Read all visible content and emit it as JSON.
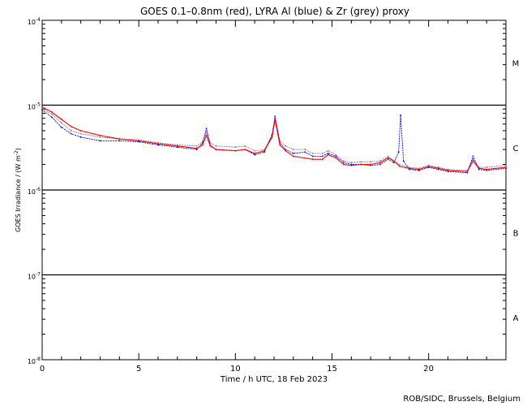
{
  "chart_data": {
    "type": "line",
    "title": "GOES 0.1–0.8nm (red), LYRA Al (blue) & Zr (grey) proxy",
    "xlabel": "Time / h UTC, 18 Feb 2023",
    "ylabel": "GOES Irradiance / (W m",
    "ylabel_exp": "-2",
    "ylabel_end": ")",
    "xlim": [
      0,
      24
    ],
    "ylim": [
      1e-08,
      0.0001
    ],
    "yscale": "log",
    "x_ticks": [
      0,
      5,
      10,
      15,
      20
    ],
    "y_ticks": [
      {
        "base": "10",
        "exp": "-8"
      },
      {
        "base": "10",
        "exp": "-7"
      },
      {
        "base": "10",
        "exp": "-6"
      },
      {
        "base": "10",
        "exp": "-5"
      },
      {
        "base": "10",
        "exp": "-4"
      }
    ],
    "class_levels": [
      {
        "label": "A",
        "level": 3.16e-08
      },
      {
        "label": "B",
        "level": 3.16e-07
      },
      {
        "label": "C",
        "level": 3.16e-06
      },
      {
        "label": "M",
        "level": 3.16e-05
      }
    ],
    "gridlines": [
      1e-05,
      1e-06,
      1e-07
    ],
    "credit": "ROB/SIDC, Brussels, Belgium",
    "series": [
      {
        "name": "GOES 0.1–0.8nm",
        "color": "#ff0000",
        "x": [
          0,
          0.5,
          1,
          1.5,
          2,
          3,
          4,
          5,
          6,
          7,
          8,
          8.3,
          8.5,
          8.7,
          9,
          10,
          10.5,
          11,
          11.5,
          11.9,
          12.05,
          12.3,
          12.6,
          13,
          14,
          14.5,
          14.8,
          15.2,
          15.6,
          16,
          16.5,
          17,
          17.5,
          17.9,
          18.2,
          18.5,
          19,
          19.5,
          20,
          20.5,
          21,
          22,
          22.3,
          22.6,
          23,
          24
        ],
        "y": [
          9.5e-06,
          8.3e-06,
          6.8e-06,
          5.6e-06,
          5e-06,
          4.4e-06,
          4e-06,
          3.8e-06,
          3.5e-06,
          3.3e-06,
          3.1e-06,
          3.4e-06,
          4.4e-06,
          3.3e-06,
          3e-06,
          2.9e-06,
          3e-06,
          2.7e-06,
          2.9e-06,
          4.2e-06,
          6.8e-06,
          3.4e-06,
          2.9e-06,
          2.5e-06,
          2.3e-06,
          2.3e-06,
          2.6e-06,
          2.4e-06,
          2e-06,
          1.95e-06,
          2e-06,
          2e-06,
          2.1e-06,
          2.4e-06,
          2.2e-06,
          1.9e-06,
          1.8e-06,
          1.75e-06,
          1.9e-06,
          1.8e-06,
          1.7e-06,
          1.65e-06,
          2.2e-06,
          1.8e-06,
          1.75e-06,
          1.85e-06
        ]
      },
      {
        "name": "LYRA Al",
        "color": "#0000ff",
        "x": [
          0,
          0.5,
          1,
          1.5,
          2,
          3,
          4,
          5,
          6,
          7,
          8,
          8.3,
          8.5,
          8.7,
          9,
          10,
          10.5,
          11,
          11.5,
          11.9,
          12.05,
          12.3,
          12.6,
          13,
          13.6,
          14,
          14.5,
          14.8,
          15.2,
          15.6,
          16,
          16.5,
          17,
          17.5,
          17.9,
          18.2,
          18.45,
          18.55,
          18.7,
          19,
          19.5,
          20,
          20.5,
          21,
          22,
          22.3,
          22.6,
          23,
          24
        ],
        "y": [
          8.8e-06,
          7.2e-06,
          5.5e-06,
          4.6e-06,
          4.2e-06,
          3.8e-06,
          3.8e-06,
          3.7e-06,
          3.4e-06,
          3.2e-06,
          3e-06,
          3.6e-06,
          5.3e-06,
          3.4e-06,
          3e-06,
          2.9e-06,
          3e-06,
          2.6e-06,
          2.8e-06,
          4.5e-06,
          7.4e-06,
          3.6e-06,
          3e-06,
          2.7e-06,
          2.8e-06,
          2.5e-06,
          2.5e-06,
          2.7e-06,
          2.5e-06,
          2.1e-06,
          2e-06,
          2e-06,
          1.95e-06,
          2e-06,
          2.3e-06,
          2.1e-06,
          2.8e-06,
          7.6e-06,
          2.2e-06,
          1.75e-06,
          1.7e-06,
          1.85e-06,
          1.75e-06,
          1.65e-06,
          1.6e-06,
          2.5e-06,
          1.75e-06,
          1.7e-06,
          1.8e-06
        ]
      },
      {
        "name": "LYRA Zr",
        "color": "#808080",
        "x": [
          0,
          0.5,
          1,
          1.5,
          2,
          3,
          4,
          5,
          6,
          7,
          8,
          8.3,
          8.5,
          8.7,
          9,
          10,
          10.5,
          11,
          11.5,
          11.9,
          12.05,
          12.3,
          12.6,
          13,
          13.6,
          14,
          14.5,
          14.8,
          15.2,
          15.6,
          16,
          16.5,
          17,
          17.5,
          17.9,
          18.2,
          18.5,
          19,
          19.5,
          20,
          20.5,
          21,
          22,
          22.3,
          22.6,
          23,
          24
        ],
        "y": [
          9.2e-06,
          7.8e-06,
          6.2e-06,
          5e-06,
          4.6e-06,
          4.2e-06,
          4e-06,
          3.9e-06,
          3.6e-06,
          3.4e-06,
          3.3e-06,
          3.7e-06,
          4.8e-06,
          3.6e-06,
          3.3e-06,
          3.2e-06,
          3.3e-06,
          2.9e-06,
          3e-06,
          4.4e-06,
          7e-06,
          3.8e-06,
          3.3e-06,
          3e-06,
          3e-06,
          2.7e-06,
          2.7e-06,
          2.9e-06,
          2.6e-06,
          2.2e-06,
          2.1e-06,
          2.15e-06,
          2.15e-06,
          2.2e-06,
          2.5e-06,
          2.2e-06,
          2e-06,
          1.85e-06,
          1.8e-06,
          1.95e-06,
          1.85e-06,
          1.75e-06,
          1.7e-06,
          2.3e-06,
          1.85e-06,
          1.85e-06,
          1.95e-06
        ]
      }
    ]
  }
}
